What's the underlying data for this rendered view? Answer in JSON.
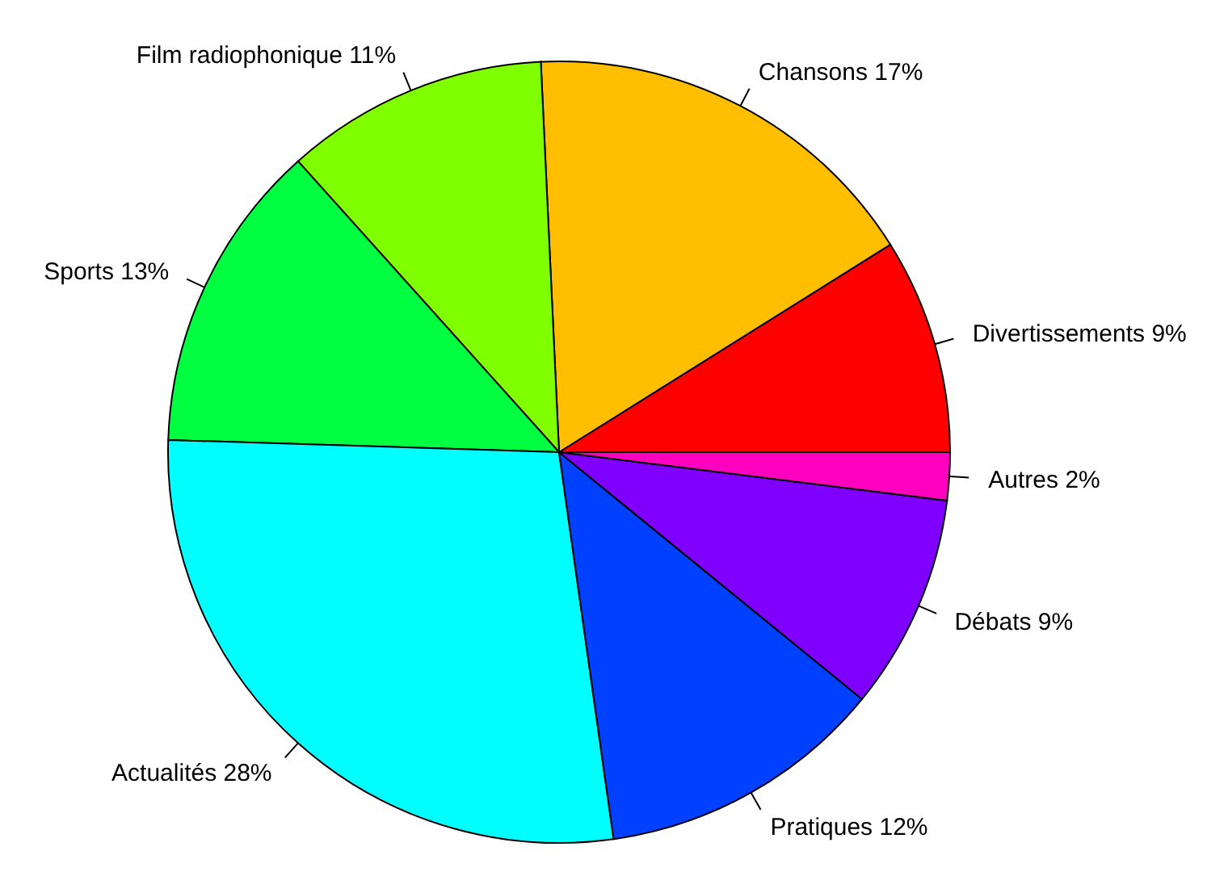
{
  "chart_data": {
    "type": "pie",
    "categories": [
      "Divertissements",
      "Chansons",
      "Film radiophonique",
      "Sports",
      "Actualités",
      "Pratiques",
      "Débats",
      "Autres"
    ],
    "values": [
      9,
      17,
      11,
      13,
      28,
      12,
      9,
      2
    ],
    "value_labels": [
      "9%",
      "17%",
      "11%",
      "13%",
      "28%",
      "12%",
      "9%",
      "2%"
    ],
    "colors": [
      "#ff0000",
      "#ffbf00",
      "#80ff00",
      "#00ff40",
      "#00ffff",
      "#0040ff",
      "#8000ff",
      "#ff00bf"
    ]
  }
}
